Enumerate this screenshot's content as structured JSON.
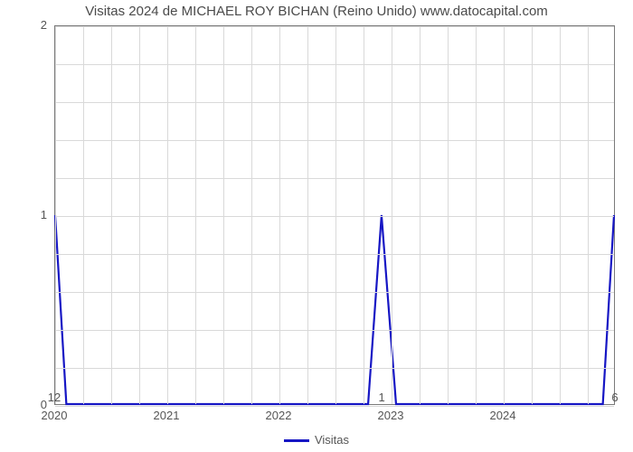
{
  "chart": {
    "type": "line",
    "title": "Visitas 2024 de MICHAEL ROY BICHAN (Reino Unido) www.datocapital.com",
    "title_fontsize": 15,
    "title_color": "#4a4a4a",
    "background_color": "#ffffff",
    "plot_border_color": "#7a7a7a",
    "grid_color": "#d9d9d9",
    "axis_label_color": "#555555",
    "axis_label_fontsize": 13,
    "x": {
      "min": 2020,
      "max": 2025,
      "ticks": [
        2020,
        2021,
        2022,
        2023,
        2024
      ],
      "minor_per_major": 4,
      "minor_grid": true
    },
    "y": {
      "min": 0,
      "max": 2,
      "ticks": [
        0,
        1,
        2
      ],
      "minor_per_major": 5,
      "minor_grid": true
    },
    "series": [
      {
        "name": "Visitas",
        "color": "#1616c4",
        "line_width": 2.2,
        "data_labels_color": "#555555",
        "points": [
          {
            "x": 2020.0,
            "y": 1.0,
            "label": "12"
          },
          {
            "x": 2020.1,
            "y": 0.0
          },
          {
            "x": 2022.8,
            "y": 0.0
          },
          {
            "x": 2022.92,
            "y": 1.0,
            "label": "1"
          },
          {
            "x": 2023.05,
            "y": 0.0
          },
          {
            "x": 2024.9,
            "y": 0.0
          },
          {
            "x": 2025.0,
            "y": 1.0,
            "label": "6"
          }
        ]
      }
    ],
    "legend": {
      "position": "bottom-center",
      "items": [
        {
          "label": "Visitas",
          "color": "#1616c4"
        }
      ]
    }
  }
}
